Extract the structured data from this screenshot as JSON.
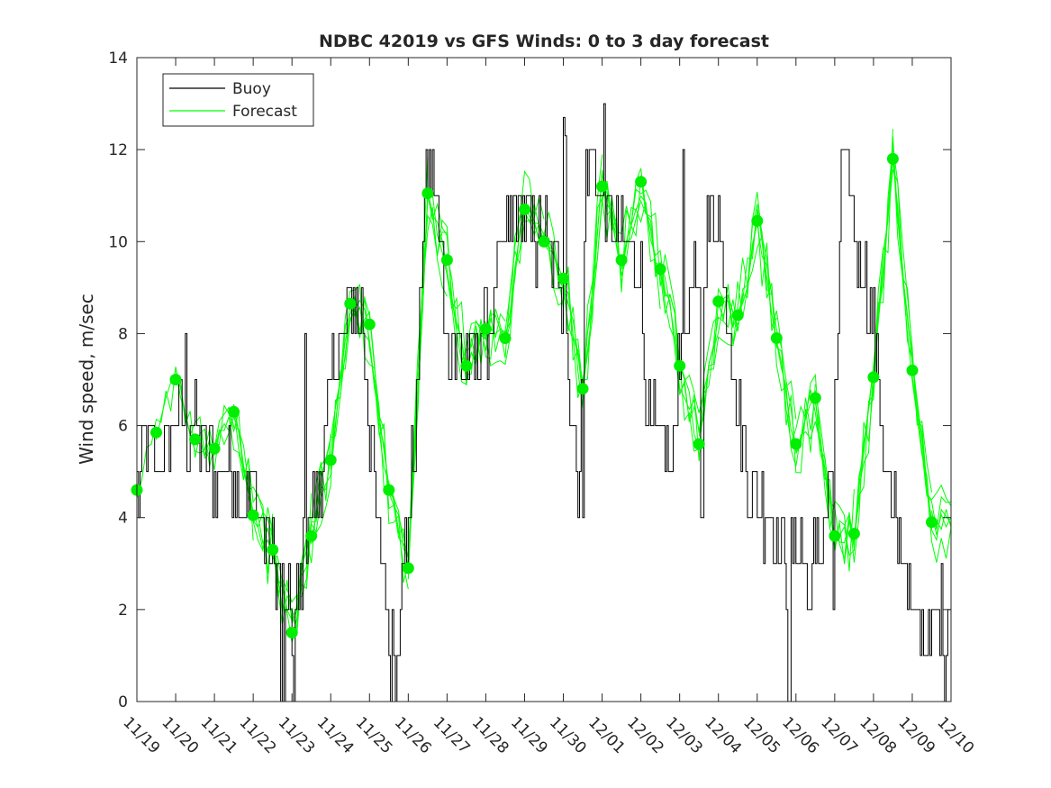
{
  "chart_data": {
    "type": "line",
    "title": "NDBC 42019 vs GFS Winds: 0 to 3 day forecast",
    "xlabel": "",
    "ylabel": "Wind speed, m/sec",
    "x_tick_labels": [
      "11/19",
      "11/20",
      "11/21",
      "11/22",
      "11/23",
      "11/24",
      "11/25",
      "11/26",
      "11/27",
      "11/28",
      "11/29",
      "11/30",
      "12/01",
      "12/02",
      "12/03",
      "12/04",
      "12/05",
      "12/06",
      "12/07",
      "12/08",
      "12/09",
      "12/10"
    ],
    "xlim_days": [
      0,
      21
    ],
    "ylim": [
      0,
      14
    ],
    "y_ticks": [
      0,
      2,
      4,
      6,
      8,
      10,
      12,
      14
    ],
    "legend": {
      "location": "top-left",
      "entries": [
        "Buoy",
        "Forecast"
      ]
    },
    "colors": {
      "buoy": "#000000",
      "forecast": "#00ff00",
      "marker": "#00ee00",
      "axis": "#262626"
    },
    "buoy_anchor_days": [
      0,
      0.2,
      0.5,
      1.0,
      1.5,
      1.8,
      2.0,
      2.5,
      2.7,
      3.0,
      3.2,
      3.5,
      3.7,
      4.0,
      4.3,
      4.5,
      4.8,
      5.0,
      5.3,
      5.5,
      5.8,
      6.0,
      6.2,
      6.5,
      6.7,
      7.0,
      7.2,
      7.4,
      7.6,
      7.8,
      8.0,
      8.2,
      8.5,
      8.8,
      9.0,
      9.3,
      9.5,
      9.8,
      10.0,
      10.3,
      10.5,
      10.8,
      11.0,
      11.2,
      11.4,
      11.6,
      11.8,
      12.0,
      12.3,
      12.5,
      12.8,
      13.0,
      13.2,
      13.5,
      13.8,
      14.0,
      14.2,
      14.5,
      14.8,
      15.0,
      15.3,
      15.5,
      15.8,
      16.0,
      16.3,
      16.5,
      16.8,
      17.0,
      17.2,
      17.5,
      17.8,
      18.0,
      18.2,
      18.5,
      18.8,
      19.0,
      19.3,
      19.5,
      19.8,
      20.0,
      20.3,
      20.5,
      20.8,
      21.0
    ],
    "buoy_anchor_values": [
      4.5,
      5.5,
      5,
      6,
      6,
      5.5,
      5,
      5,
      4.5,
      4.5,
      4,
      3,
      2.5,
      1.5,
      3,
      4,
      5,
      7,
      8,
      8.5,
      8.5,
      6,
      4,
      1.5,
      1.5,
      4,
      6,
      10.5,
      11.5,
      10,
      8,
      7.5,
      7.5,
      7.5,
      8,
      9,
      10,
      10.5,
      10.5,
      10,
      10,
      9.5,
      9,
      6,
      5,
      12,
      11.5,
      10.5,
      10,
      10,
      10,
      9,
      6,
      5.5,
      5,
      8,
      8.5,
      9,
      10.5,
      10.5,
      8,
      6,
      5,
      4.5,
      4,
      3.5,
      3,
      3.5,
      3.5,
      3,
      4,
      6,
      12,
      10.5,
      9,
      8,
      5,
      4,
      3,
      2,
      1.5,
      2,
      2,
      2
    ],
    "buoy_spike_days": [
      1.25,
      3.72,
      3.8,
      4.05,
      4.35,
      6.55,
      6.65,
      11.02,
      11.05,
      11.5,
      12.05,
      14.1,
      14.55,
      14.6,
      16.8,
      16.85,
      17.3,
      17.35,
      17.95,
      20.72,
      20.85
    ],
    "buoy_spike_values": [
      8,
      0,
      0,
      0,
      8,
      0,
      0,
      12.7,
      12.3,
      4,
      13,
      12,
      4,
      4,
      0,
      0,
      2,
      2,
      2,
      1,
      0
    ],
    "forecast_markers_days": [
      0,
      0.5,
      1.0,
      1.5,
      2.0,
      2.5,
      3.0,
      3.5,
      4.0,
      4.5,
      5.0,
      5.5,
      6.0,
      6.5,
      7.0,
      7.5,
      8.0,
      8.5,
      9.0,
      9.5,
      10.0,
      10.5,
      11.0,
      11.5,
      12.0,
      12.5,
      13.0,
      13.5,
      14.0,
      14.5,
      15.0,
      15.5,
      16.0,
      16.5,
      17.0,
      17.5,
      18.0,
      18.5,
      19.0,
      19.5,
      20.0,
      20.5
    ],
    "forecast_markers_values": [
      4.6,
      5.85,
      7.0,
      5.7,
      5.5,
      6.3,
      4.05,
      3.3,
      1.5,
      3.6,
      5.25,
      8.65,
      8.2,
      4.6,
      2.9,
      11.05,
      9.6,
      7.3,
      8.1,
      7.9,
      10.7,
      10.0,
      9.2,
      6.8,
      11.2,
      9.6,
      11.3,
      9.4,
      7.3,
      5.6,
      8.7,
      8.4,
      10.45,
      7.9,
      5.6,
      6.6,
      3.6,
      3.65,
      7.05,
      11.8,
      7.2,
      3.9
    ]
  }
}
